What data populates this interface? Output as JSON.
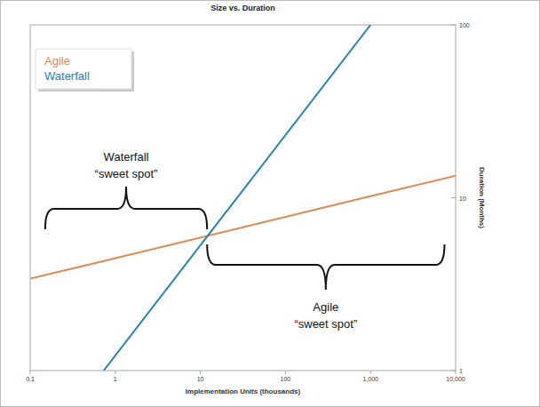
{
  "chart_data": {
    "type": "line",
    "title": "Size vs. Duration",
    "x_label": "Implementation Units (thousands)",
    "y_label": "Duration (Months)",
    "log": true,
    "grid": false,
    "legend": "top-left",
    "x": [
      0.1,
      0.73,
      1000,
      10000
    ],
    "series": [
      {
        "name": "Agile",
        "color": "#dd8a52",
        "values": [
          3.4,
          4.3,
          10.2,
          13.4
        ]
      },
      {
        "name": "Waterfall",
        "color": "#2481b3",
        "values": [
          null,
          1,
          100,
          null
        ]
      }
    ],
    "xlim": [
      0.1,
      10000
    ],
    "xticks": [
      0.1,
      1,
      10,
      100,
      {
        "value": 1000,
        "label": "1,000"
      },
      {
        "value": 10000,
        "label": "10,000"
      }
    ],
    "ylim": [
      1,
      100
    ],
    "yticks": [
      1,
      10,
      100
    ],
    "annotations": [
      {
        "text": [
          "Waterfall",
          "“sweet spot”"
        ],
        "x_range": [
          0.15,
          12
        ]
      },
      {
        "text": [
          "Agile",
          "“sweet spot”"
        ],
        "x_range": [
          12,
          7400
        ]
      }
    ]
  }
}
